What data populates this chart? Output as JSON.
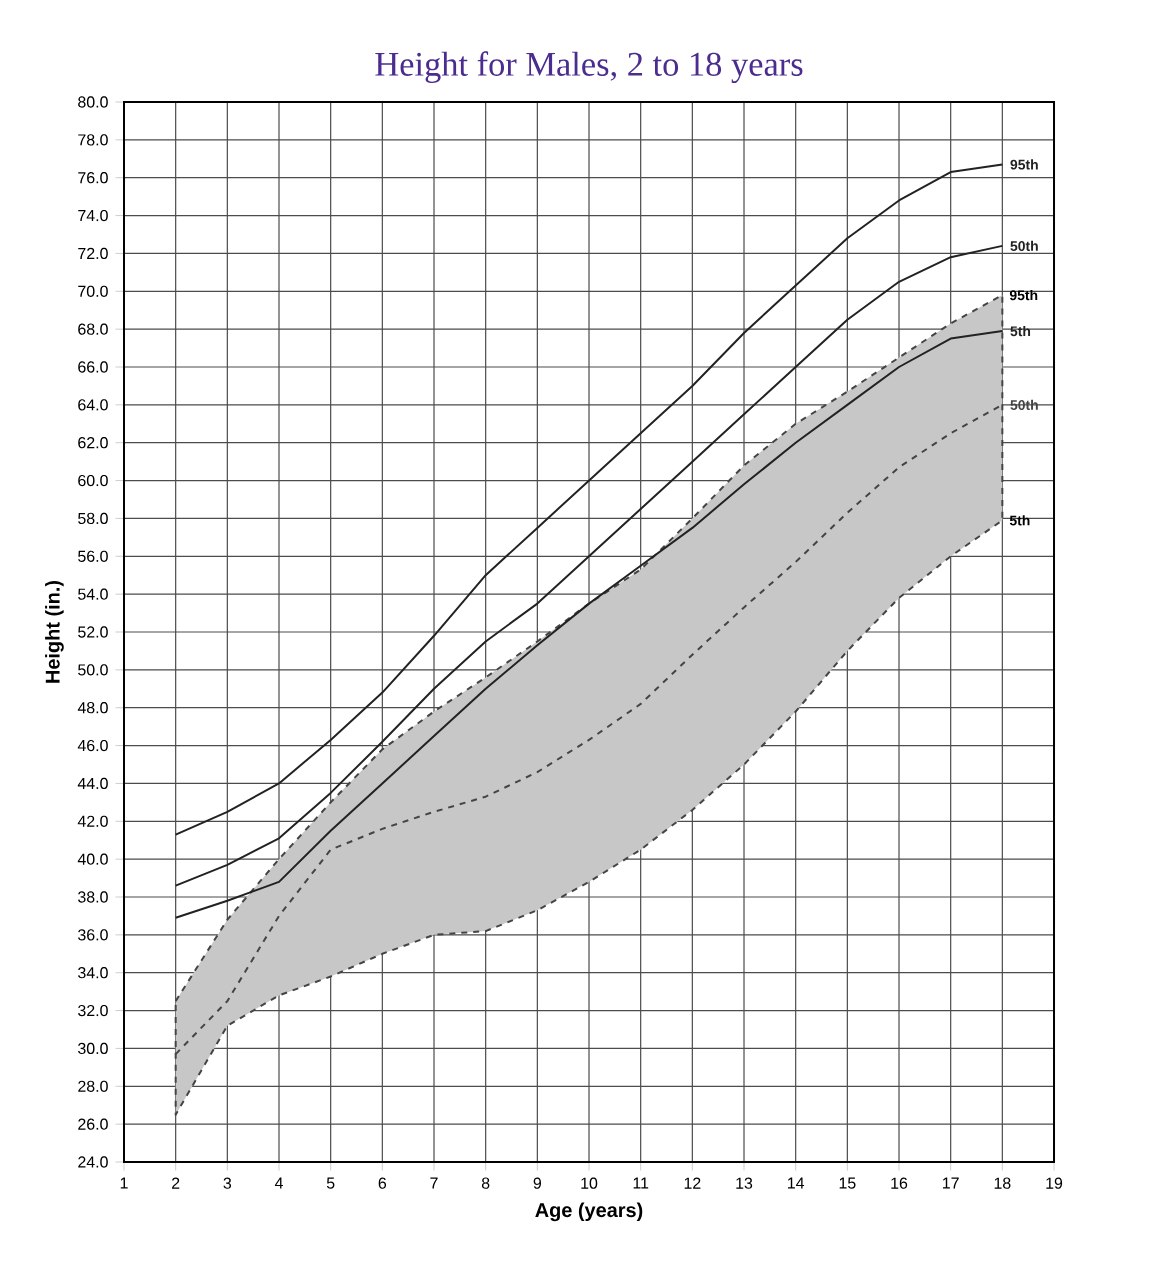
{
  "chart_data": {
    "type": "line",
    "title": "Height for Males, 2 to 18 years",
    "xlabel": "Age (years)",
    "ylabel": "Height (in.)",
    "x": [
      2,
      3,
      4,
      5,
      6,
      7,
      8,
      9,
      10,
      11,
      12,
      13,
      14,
      15,
      16,
      17,
      18
    ],
    "series": [
      {
        "name": "95th",
        "color": "#222222",
        "line_style": "solid",
        "values": [
          41.3,
          42.5,
          44,
          46.3,
          48.8,
          51.8,
          55,
          57.5,
          60,
          62.5,
          65,
          67.8,
          70.3,
          72.8,
          74.8,
          76.3,
          76.7
        ]
      },
      {
        "name": "50th",
        "color": "#222222",
        "line_style": "solid",
        "values": [
          38.6,
          39.7,
          41.1,
          43.5,
          46.2,
          49,
          51.5,
          53.5,
          56,
          58.5,
          61,
          63.5,
          66,
          68.5,
          70.5,
          71.8,
          72.4
        ]
      },
      {
        "name": "5th",
        "color": "#222222",
        "line_style": "solid",
        "values": [
          36.9,
          37.8,
          38.8,
          41.5,
          44,
          46.5,
          49,
          51.3,
          53.5,
          55.5,
          57.5,
          59.8,
          62,
          64,
          66,
          67.5,
          67.9
        ]
      },
      {
        "name": "50th",
        "color": "#444444",
        "line_style": "dashed",
        "values": [
          29.7,
          32.5,
          37,
          40.5,
          41.6,
          42.5,
          43.3,
          44.6,
          46.3,
          48.2,
          50.8,
          53.3,
          55.7,
          58.3,
          60.7,
          62.5,
          64
        ],
        "lower": [
          26.5,
          31.2,
          32.8,
          33.8,
          35,
          36,
          36.2,
          37.3,
          38.8,
          40.5,
          42.6,
          45,
          47.8,
          51,
          53.8,
          56,
          57.9
        ],
        "upper": [
          32.5,
          36.8,
          40,
          43,
          45.8,
          47.8,
          49.6,
          51.5,
          53.5,
          55.3,
          58,
          60.8,
          63,
          64.7,
          66.5,
          68.3,
          69.8
        ]
      }
    ],
    "annotations": [
      {
        "text": "95th",
        "x": 18,
        "y": 69.8
      },
      {
        "text": "5th",
        "x": 18,
        "y": 57.9
      }
    ],
    "xlim": [
      1,
      19
    ],
    "xticks": [
      1,
      2,
      3,
      4,
      5,
      6,
      7,
      8,
      9,
      10,
      11,
      12,
      13,
      14,
      15,
      16,
      17,
      18,
      19
    ],
    "ylim": [
      24,
      80
    ],
    "yticks": [
      {
        "value": 24,
        "label": "24.0"
      },
      {
        "value": 26,
        "label": "26.0"
      },
      {
        "value": 28,
        "label": "28.0"
      },
      {
        "value": 30,
        "label": "30.0"
      },
      {
        "value": 32,
        "label": "32.0"
      },
      {
        "value": 34,
        "label": "34.0"
      },
      {
        "value": 36,
        "label": "36.0"
      },
      {
        "value": 38,
        "label": "38.0"
      },
      {
        "value": 40,
        "label": "40.0"
      },
      {
        "value": 42,
        "label": "42.0"
      },
      {
        "value": 44,
        "label": "44.0"
      },
      {
        "value": 46,
        "label": "46.0"
      },
      {
        "value": 48,
        "label": "48.0"
      },
      {
        "value": 50,
        "label": "50.0"
      },
      {
        "value": 52,
        "label": "52.0"
      },
      {
        "value": 54,
        "label": "54.0"
      },
      {
        "value": 56,
        "label": "56.0"
      },
      {
        "value": 58,
        "label": "58.0"
      },
      {
        "value": 60,
        "label": "60.0"
      },
      {
        "value": 62,
        "label": "62.0"
      },
      {
        "value": 64,
        "label": "64.0"
      },
      {
        "value": 66,
        "label": "66.0"
      },
      {
        "value": 68,
        "label": "68.0"
      },
      {
        "value": 70,
        "label": "70.0"
      },
      {
        "value": 72,
        "label": "72.0"
      },
      {
        "value": 74,
        "label": "74.0"
      },
      {
        "value": 76,
        "label": "76.0"
      },
      {
        "value": 78,
        "label": "78.0"
      },
      {
        "value": 80,
        "label": "80.0"
      }
    ],
    "grid": true,
    "marker": "none",
    "legend": false
  }
}
